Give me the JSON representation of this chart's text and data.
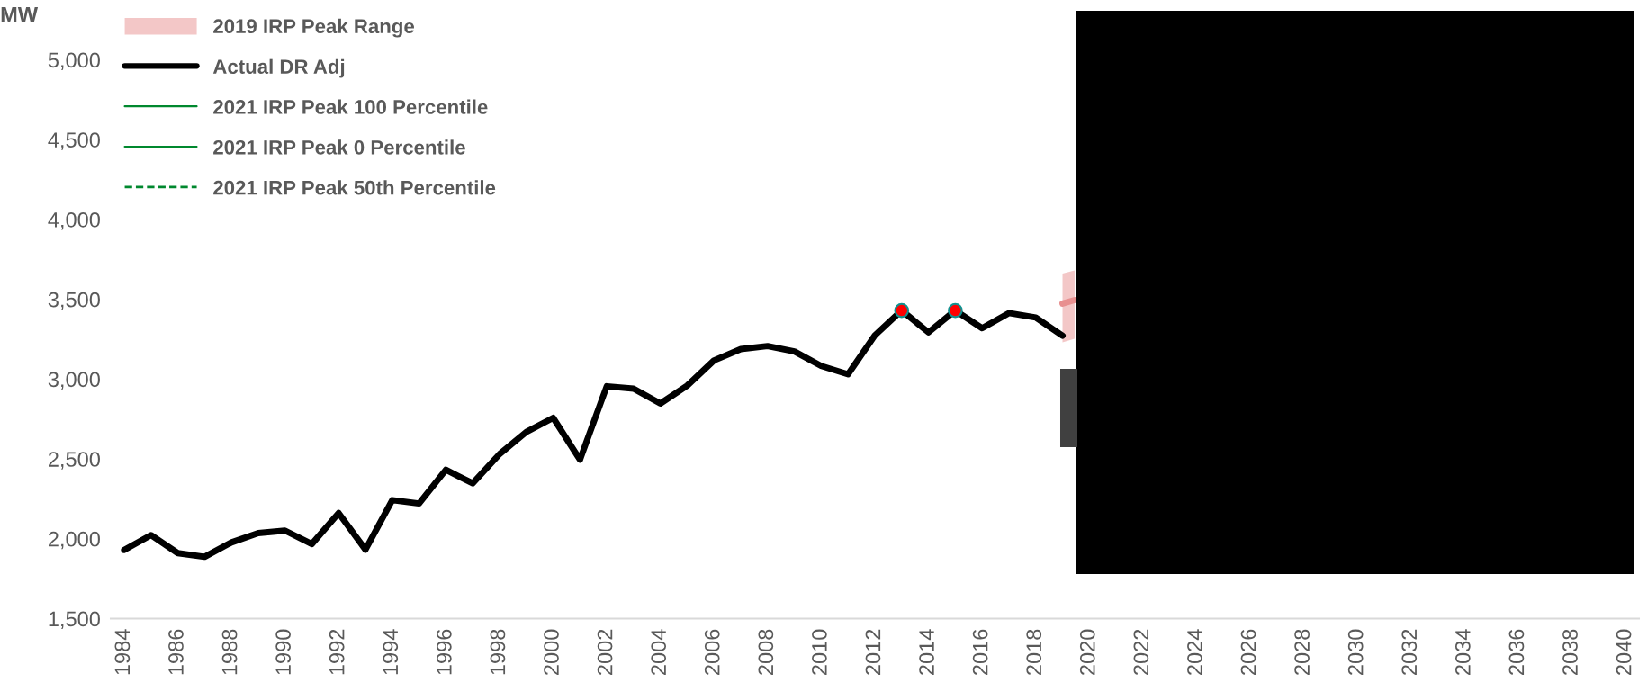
{
  "chart_data": {
    "type": "line",
    "ylabel": "MW",
    "xlim": [
      1983.5,
      2040.5
    ],
    "xticks": [
      1984,
      1986,
      1988,
      1990,
      1992,
      1994,
      1996,
      1998,
      2000,
      2002,
      2004,
      2006,
      2008,
      2010,
      2012,
      2014,
      2016,
      2018,
      2020,
      2022,
      2024,
      2026,
      2028,
      2030,
      2032,
      2034,
      2036,
      2038,
      2040
    ],
    "ylim": [
      1500,
      5000
    ],
    "yticks": [
      {
        "value": 1500,
        "label": "1,500"
      },
      {
        "value": 2000,
        "label": "2,000"
      },
      {
        "value": 2500,
        "label": "2,500"
      },
      {
        "value": 3000,
        "label": "3,000"
      },
      {
        "value": 3500,
        "label": "3,500"
      },
      {
        "value": 4000,
        "label": "4,000"
      },
      {
        "value": 4500,
        "label": "4,500"
      },
      {
        "value": 5000,
        "label": "5,000"
      }
    ],
    "grid": false,
    "legend": "top left",
    "series": [
      {
        "name": "2019 IRP Peak Range",
        "type": "line",
        "color": "#e89090",
        "x": [
          2019,
          2019.45
        ],
        "lower": [
          3230,
          3253
        ],
        "upper": [
          3662,
          3681
        ],
        "values": [
          3473,
          3495
        ]
      },
      {
        "name": "Actual DR Adj",
        "color": "#000000",
        "x": [
          1984,
          1985,
          1986,
          1987,
          1988,
          1989,
          1990,
          1991,
          1992,
          1993,
          1994,
          1995,
          1996,
          1997,
          1998,
          1999,
          2000,
          2001,
          2002,
          2003,
          2004,
          2005,
          2006,
          2007,
          2008,
          2009,
          2010,
          2011,
          2012,
          2013,
          2014,
          2015,
          2016,
          2017,
          2018,
          2019
        ],
        "values": [
          1930,
          2023,
          1910,
          1887,
          1977,
          2035,
          2051,
          1967,
          2161,
          1932,
          2242,
          2221,
          2432,
          2347,
          2530,
          2669,
          2757,
          2495,
          2955,
          2940,
          2847,
          2959,
          3117,
          3188,
          3207,
          3173,
          3082,
          3030,
          3274,
          3430,
          3293,
          3430,
          3319,
          3414,
          3386,
          3272
        ]
      },
      {
        "name": "2021 IRP Peak 100 Percentile",
        "type": "line",
        "color": "#00882e"
      },
      {
        "name": "2021 IRP Peak 0 Percentile",
        "type": "line",
        "color": "#00882e"
      },
      {
        "name": "2021 IRP Peak 50th Percentile",
        "type": "line",
        "line_style": "dashed",
        "color": "#00882e"
      },
      {
        "type": "scatter",
        "marker": "circle",
        "color": "#ff0000",
        "x": [
          2013,
          2015
        ],
        "values": [
          3430,
          3430
        ]
      }
    ]
  }
}
